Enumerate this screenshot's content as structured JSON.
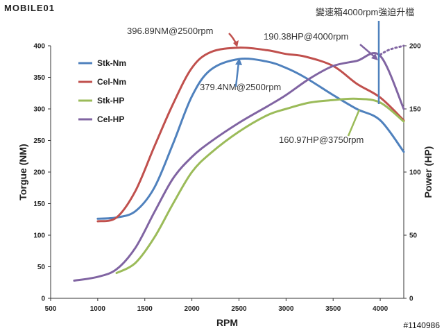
{
  "watermark": {
    "brand": "MOBILE01"
  },
  "footer_id": "#1140986",
  "chart_data": {
    "type": "line",
    "title": "",
    "xlabel": "RPM",
    "ylabel_left": "Torgue (NM)",
    "ylabel_right": "Power (HP)",
    "xlim": [
      500,
      4250
    ],
    "ylim_left": [
      0,
      400
    ],
    "ylim_right": [
      0,
      200
    ],
    "x_ticks": [
      "500",
      "1000",
      "1500",
      "2000",
      "2500",
      "3000",
      "3500",
      "4000"
    ],
    "y_ticks_left": [
      "0",
      "50",
      "100",
      "150",
      "200",
      "250",
      "300",
      "350",
      "400"
    ],
    "y_ticks_right": [
      "0",
      "50",
      "100",
      "150",
      "200"
    ],
    "grid": false,
    "legend_position": "top-left",
    "series": [
      {
        "name": "Stk-Nm",
        "axis": "left",
        "color": "#4f81bd",
        "x": [
          1000,
          1200,
          1400,
          1600,
          1800,
          2000,
          2200,
          2500,
          2800,
          3000,
          3200,
          3500,
          3750,
          4000,
          4250
        ],
        "y": [
          126,
          128,
          138,
          175,
          245,
          320,
          362,
          379,
          375,
          365,
          350,
          322,
          300,
          282,
          232
        ]
      },
      {
        "name": "Cel-Nm",
        "axis": "left",
        "color": "#c0504d",
        "x": [
          1000,
          1200,
          1400,
          1600,
          1800,
          2000,
          2200,
          2500,
          2800,
          3000,
          3200,
          3500,
          3750,
          4000,
          4250
        ],
        "y": [
          122,
          128,
          170,
          240,
          308,
          365,
          390,
          397,
          393,
          387,
          383,
          368,
          340,
          318,
          282
        ]
      },
      {
        "name": "Stk-HP",
        "axis": "right",
        "color": "#9bbb59",
        "x": [
          1200,
          1400,
          1600,
          1800,
          2000,
          2200,
          2500,
          2800,
          3000,
          3250,
          3500,
          3750,
          4000,
          4250
        ],
        "y": [
          20,
          28,
          48,
          75,
          100,
          115,
          132,
          145,
          150,
          155,
          157,
          158,
          155,
          140
        ]
      },
      {
        "name": "Cel-HP",
        "axis": "right",
        "color": "#8064a2",
        "x": [
          750,
          1000,
          1200,
          1400,
          1600,
          1800,
          2000,
          2200,
          2500,
          2800,
          3000,
          3250,
          3500,
          3750,
          4000,
          4250
        ],
        "y": [
          14,
          17,
          23,
          40,
          68,
          95,
          112,
          124,
          139,
          152,
          161,
          174,
          184,
          188,
          192,
          150
        ]
      },
      {
        "name": "",
        "axis": "right",
        "color": "#8064a2",
        "dashed": true,
        "x": [
          4000,
          4100,
          4250
        ],
        "y": [
          193,
          197,
          200
        ]
      }
    ],
    "annotations": [
      {
        "text": "396.89NM@2500rpm",
        "color": "#c0504d"
      },
      {
        "text": "379.4NM@2500rpm",
        "color": "#4f81bd"
      },
      {
        "text": "190.38HP@4000rpm",
        "color": "#8064a2"
      },
      {
        "text": "160.97HP@3750rpm",
        "color": "#9bbb59"
      },
      {
        "text": "變速箱4000rpm強迫升檔",
        "color": "#4f81bd"
      }
    ]
  }
}
